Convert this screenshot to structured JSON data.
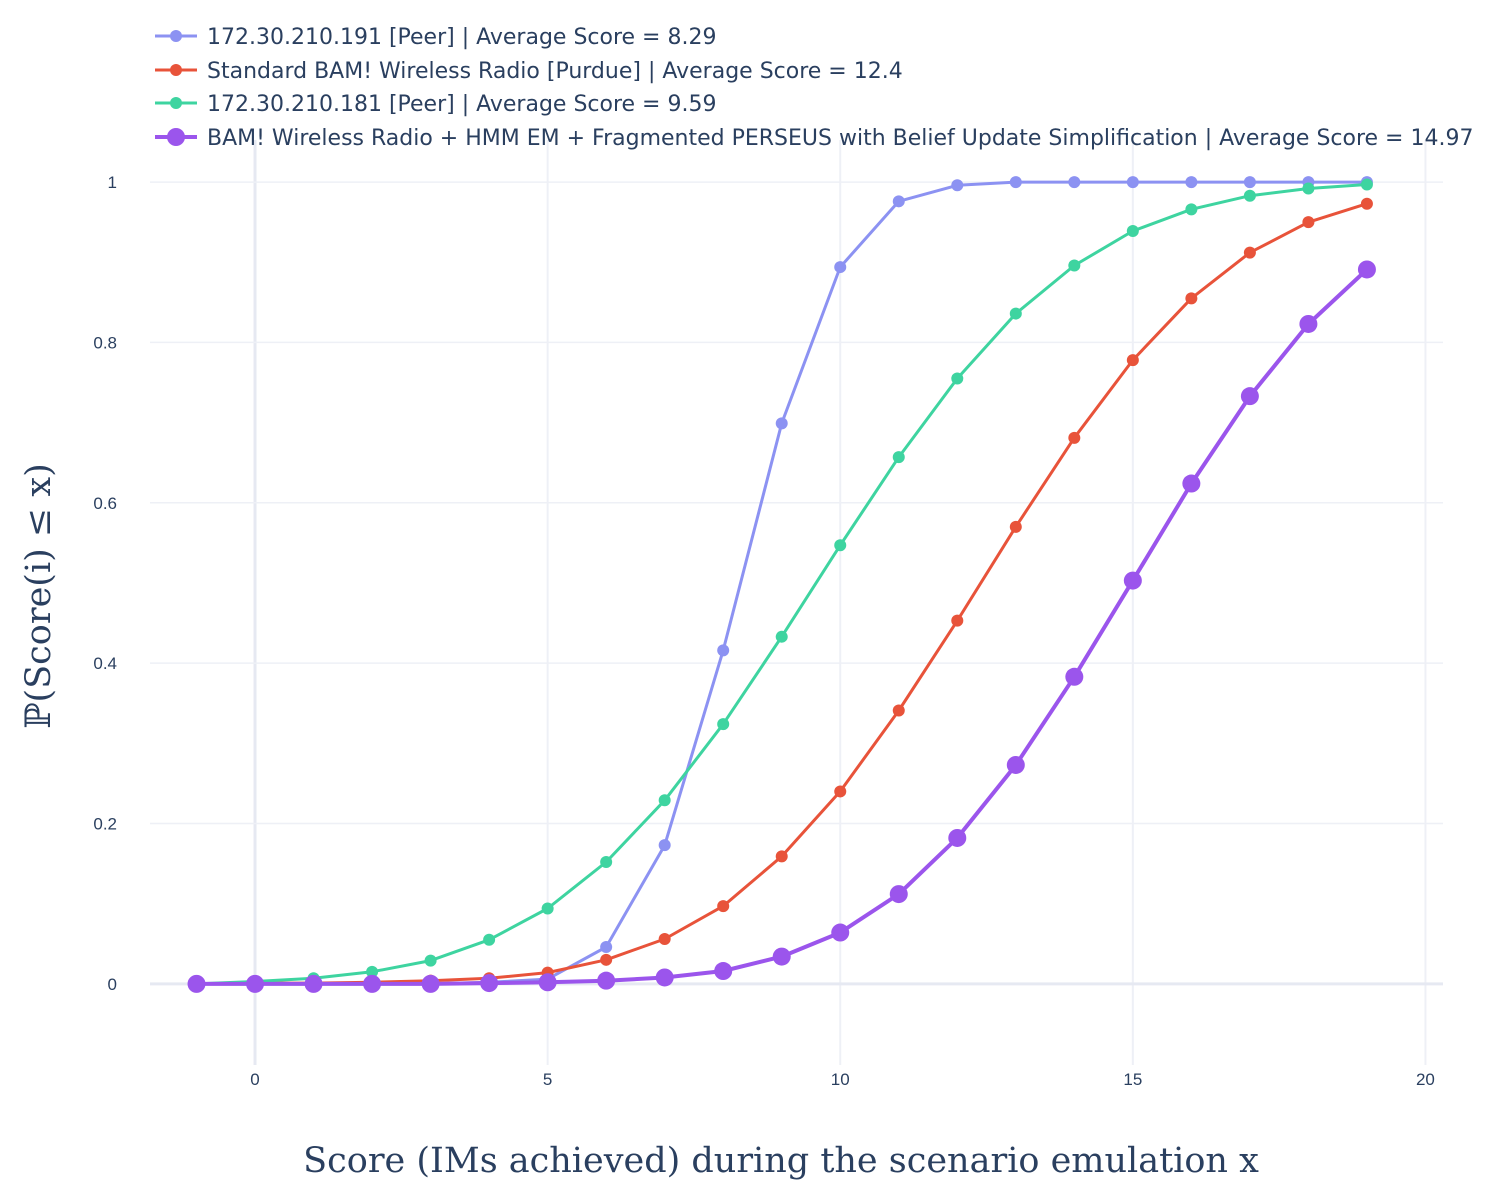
{
  "chart_data": {
    "type": "line",
    "xlabel": "Score (IMs achieved) during the scenario emulation x",
    "ylabel": "ℙ(Score(i) ≤ x)",
    "xlim": [
      -2,
      20.3
    ],
    "ylim": [
      -0.07,
      1.04
    ],
    "x_ticks": [
      0,
      5,
      10,
      15,
      20
    ],
    "y_ticks": [
      0,
      0.2,
      0.4,
      0.6,
      0.8,
      1
    ],
    "y_tick_labels": [
      "0",
      "0.2",
      "0.4",
      "0.6",
      "0.8",
      "1"
    ],
    "grid": true,
    "legend_position": "top-left",
    "x": [
      -1,
      0,
      1,
      2,
      3,
      4,
      5,
      6,
      7,
      8,
      9,
      10,
      11,
      12,
      13,
      14,
      15,
      16,
      17,
      18,
      19
    ],
    "series": [
      {
        "name": "172.30.210.191 [Peer] | Average Score = 8.29",
        "color": "#8c92f2",
        "marker_size": "small",
        "values": [
          0.0,
          0.0,
          0.0,
          0.0,
          0.0,
          0.002,
          0.006,
          0.046,
          0.173,
          0.416,
          0.699,
          0.894,
          0.976,
          0.996,
          1.0,
          1.0,
          1.0,
          1.0,
          1.0,
          1.0,
          1.0
        ]
      },
      {
        "name": "Standard BAM! Wireless Radio [Purdue] | Average Score = 12.4",
        "color": "#e8533a",
        "marker_size": "small",
        "values": [
          0.0,
          0.001,
          0.001,
          0.002,
          0.004,
          0.007,
          0.014,
          0.03,
          0.056,
          0.097,
          0.159,
          0.24,
          0.341,
          0.453,
          0.57,
          0.681,
          0.778,
          0.855,
          0.912,
          0.95,
          0.973
        ]
      },
      {
        "name": "172.30.210.181 [Peer] | Average Score = 9.59",
        "color": "#3ed4a0",
        "marker_size": "small",
        "values": [
          0.0,
          0.003,
          0.007,
          0.015,
          0.029,
          0.055,
          0.094,
          0.152,
          0.229,
          0.324,
          0.433,
          0.547,
          0.657,
          0.755,
          0.836,
          0.896,
          0.939,
          0.966,
          0.983,
          0.992,
          0.997
        ]
      },
      {
        "name": "BAM! Wireless Radio + HMM EM + Fragmented PERSEUS with Belief Update Simplification | Average Score = 14.97",
        "color": "#9b55ec",
        "marker_size": "large",
        "values": [
          0.0,
          0.0,
          0.0,
          0.0,
          0.0,
          0.001,
          0.002,
          0.004,
          0.008,
          0.016,
          0.034,
          0.064,
          0.112,
          0.182,
          0.273,
          0.383,
          0.503,
          0.624,
          0.733,
          0.823,
          0.891
        ]
      }
    ]
  }
}
